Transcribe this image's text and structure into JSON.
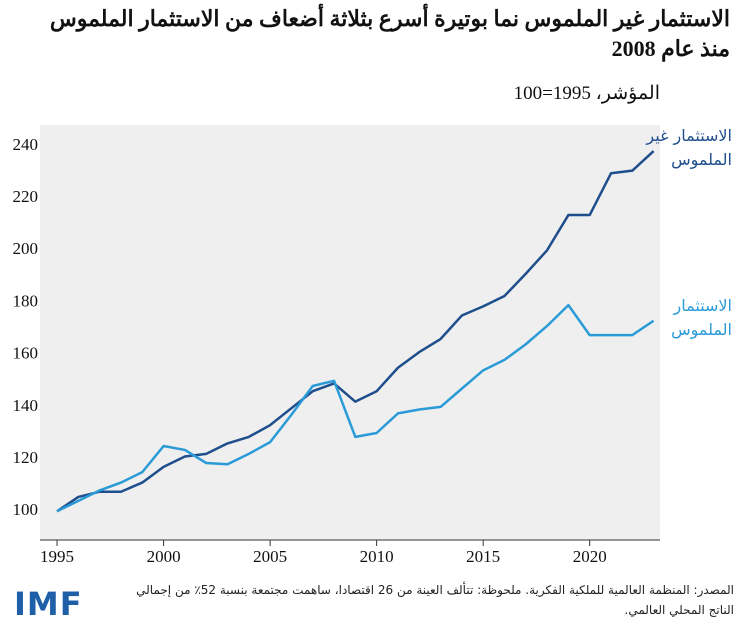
{
  "chart_data": {
    "type": "line",
    "title": "الاستثمار غير الملموس نما بوتيرة أسرع بثلاثة أضعاف من الاستثمار الملموس منذ عام 2008",
    "subtitle": "المؤشر، 1995=100",
    "x": [
      1995,
      1996,
      1997,
      1998,
      1999,
      2000,
      2001,
      2002,
      2003,
      2004,
      2005,
      2006,
      2007,
      2008,
      2009,
      2010,
      2011,
      2012,
      2013,
      2014,
      2015,
      2016,
      2017,
      2018,
      2019,
      2020,
      2021,
      2022,
      2023
    ],
    "series": [
      {
        "name": "الاستثمار غير الملموس",
        "color": "#1f4e8c",
        "values": [
          100,
          105.5,
          107.5,
          107.5,
          111,
          117,
          121,
          122,
          126,
          128.5,
          133,
          139.5,
          146,
          149,
          142,
          146,
          155,
          161,
          166,
          175,
          178.5,
          182.5,
          191,
          200,
          213.5,
          213.5,
          229.5,
          230.5,
          238
        ]
      },
      {
        "name": "الاستثمار الملموس",
        "color": "#2b9bd8",
        "values": [
          100,
          104,
          108,
          111,
          115,
          125,
          123.5,
          118.5,
          118,
          122,
          126.5,
          137,
          148,
          150,
          128.5,
          130,
          137.5,
          139,
          140,
          147,
          154,
          158,
          164,
          171,
          179,
          167.5,
          167.5,
          167.5,
          173
        ]
      }
    ],
    "xlim": [
      1994.2,
      2023.3
    ],
    "xticks": [
      1995,
      2000,
      2005,
      2010,
      2015,
      2020
    ],
    "ylim": [
      89,
      248
    ],
    "yticks": [
      100,
      120,
      140,
      160,
      180,
      200,
      220,
      240
    ],
    "grid": false,
    "note": "المصدر: المنظمة العالمية للملكية الفكرية. ملحوظة: تتألف العينة من 26 اقتصادا، ساهمت مجتمعة بنسبة 52٪ من إجمالي الناتج المحلي العالمي.",
    "logo": "IMF"
  }
}
